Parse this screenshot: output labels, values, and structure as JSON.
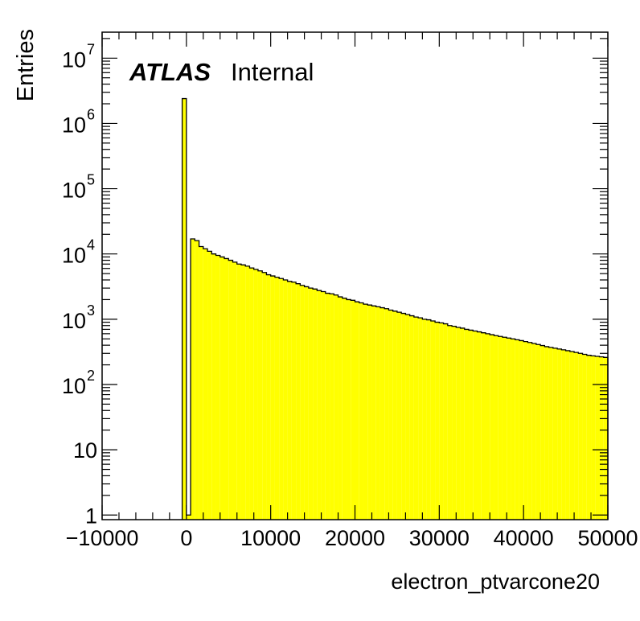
{
  "chart_data": {
    "type": "bar",
    "title": "",
    "xlabel": "electron_ptvarcone20",
    "ylabel": "Entries",
    "annotation": {
      "bold": "ATLAS",
      "text": "Internal"
    },
    "x_range": [
      -10000,
      50000
    ],
    "y_range": [
      0.85,
      25000000
    ],
    "y_scale": "log",
    "grid": false,
    "x_tick_labels": [
      "−10000",
      "0",
      "10000",
      "20000",
      "30000",
      "40000",
      "50000"
    ],
    "y_tick_labels": [
      {
        "base": "1",
        "exp": ""
      },
      {
        "base": "10",
        "exp": ""
      },
      {
        "base": "10",
        "exp": "2"
      },
      {
        "base": "10",
        "exp": "3"
      },
      {
        "base": "10",
        "exp": "4"
      },
      {
        "base": "10",
        "exp": "5"
      },
      {
        "base": "10",
        "exp": "6"
      },
      {
        "base": "10",
        "exp": "7"
      }
    ],
    "fill_color": "#ffff00",
    "line_color": "#000000",
    "bin_width": 500,
    "bins_start": -500,
    "values": [
      2400000,
      1,
      17000,
      16000,
      13000,
      12000,
      11000,
      10000,
      9500,
      9000,
      8500,
      8000,
      7500,
      7000,
      6800,
      6500,
      6100,
      5800,
      5500,
      5200,
      4800,
      4600,
      4400,
      4200,
      4000,
      3800,
      3700,
      3500,
      3300,
      3150,
      3000,
      2900,
      2750,
      2650,
      2500,
      2450,
      2350,
      2200,
      2100,
      2000,
      1950,
      1850,
      1780,
      1700,
      1650,
      1600,
      1550,
      1500,
      1450,
      1380,
      1330,
      1280,
      1230,
      1180,
      1130,
      1080,
      1050,
      1000,
      980,
      940,
      900,
      880,
      850,
      800,
      780,
      750,
      730,
      700,
      680,
      660,
      640,
      620,
      600,
      580,
      560,
      545,
      530,
      515,
      500,
      485,
      470,
      455,
      440,
      425,
      410,
      395,
      380,
      370,
      360,
      350,
      340,
      330,
      320,
      310,
      300,
      290,
      280,
      275,
      270,
      265,
      260
    ]
  }
}
